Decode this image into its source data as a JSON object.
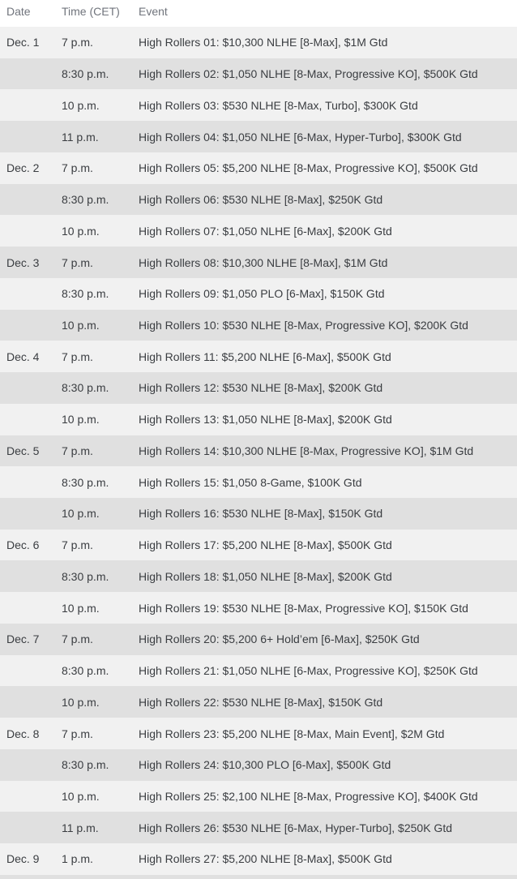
{
  "colors": {
    "background": "#ffffff",
    "row_light": "#f1f1f1",
    "row_dark": "#e0e0e0",
    "header_text": "#70747c",
    "body_text": "#3a3d41"
  },
  "table": {
    "columns": [
      "Date",
      "Time (CET)",
      "Event"
    ],
    "rows": [
      {
        "date": "Dec. 1",
        "time": "7 p.m.",
        "event": "High Rollers 01: $10,300 NLHE [8-Max], $1M Gtd"
      },
      {
        "date": "",
        "time": "8:30 p.m.",
        "event": "High Rollers 02: $1,050 NLHE [8-Max, Progressive KO], $500K Gtd"
      },
      {
        "date": "",
        "time": "10 p.m.",
        "event": "High Rollers 03: $530 NLHE [8-Max, Turbo], $300K Gtd"
      },
      {
        "date": "",
        "time": "11 p.m.",
        "event": "High Rollers 04: $1,050 NLHE [6-Max, Hyper-Turbo], $300K Gtd"
      },
      {
        "date": "Dec. 2",
        "time": "7 p.m.",
        "event": "High Rollers 05: $5,200 NLHE [8-Max, Progressive KO], $500K Gtd"
      },
      {
        "date": "",
        "time": "8:30 p.m.",
        "event": "High Rollers 06: $530 NLHE [8-Max], $250K Gtd"
      },
      {
        "date": "",
        "time": "10 p.m.",
        "event": "High Rollers 07: $1,050 NLHE [6-Max], $200K Gtd"
      },
      {
        "date": "Dec. 3",
        "time": "7 p.m.",
        "event": "High Rollers 08: $10,300 NLHE [8-Max], $1M Gtd"
      },
      {
        "date": "",
        "time": "8:30 p.m.",
        "event": "High Rollers 09: $1,050 PLO [6-Max], $150K Gtd"
      },
      {
        "date": "",
        "time": "10 p.m.",
        "event": "High Rollers 10: $530 NLHE [8-Max, Progressive KO], $200K Gtd"
      },
      {
        "date": "Dec. 4",
        "time": "7 p.m.",
        "event": "High Rollers 11: $5,200 NLHE [6-Max], $500K Gtd"
      },
      {
        "date": "",
        "time": "8:30 p.m.",
        "event": "High Rollers 12: $530 NLHE [8-Max], $200K Gtd"
      },
      {
        "date": "",
        "time": "10 p.m.",
        "event": "High Rollers 13: $1,050 NLHE [8-Max], $200K Gtd"
      },
      {
        "date": "Dec. 5",
        "time": "7 p.m.",
        "event": "High Rollers 14: $10,300 NLHE [8-Max, Progressive KO], $1M Gtd"
      },
      {
        "date": "",
        "time": "8:30 p.m.",
        "event": "High Rollers 15: $1,050 8-Game, $100K Gtd"
      },
      {
        "date": "",
        "time": "10 p.m.",
        "event": "High Rollers 16: $530 NLHE [8-Max], $150K Gtd"
      },
      {
        "date": "Dec. 6",
        "time": "7 p.m.",
        "event": "High Rollers 17: $5,200 NLHE [8-Max], $500K Gtd"
      },
      {
        "date": "",
        "time": "8:30 p.m.",
        "event": "High Rollers 18: $1,050 NLHE [8-Max], $200K Gtd"
      },
      {
        "date": "",
        "time": "10 p.m.",
        "event": "High Rollers 19: $530 NLHE [8-Max, Progressive KO], $150K Gtd"
      },
      {
        "date": "Dec. 7",
        "time": "7 p.m.",
        "event": "High Rollers 20: $5,200 6+ Hold’em [6-Max], $250K Gtd"
      },
      {
        "date": "",
        "time": "8:30 p.m.",
        "event": "High Rollers 21: $1,050 NLHE [6-Max, Progressive KO], $250K Gtd"
      },
      {
        "date": "",
        "time": "10 p.m.",
        "event": "High Rollers 22: $530 NLHE [8-Max], $150K Gtd"
      },
      {
        "date": "Dec. 8",
        "time": "7 p.m.",
        "event": "High Rollers 23: $5,200 NLHE [8-Max, Main Event], $2M Gtd"
      },
      {
        "date": "",
        "time": "8:30 p.m.",
        "event": "High Rollers 24: $10,300 PLO [6-Max], $500K Gtd"
      },
      {
        "date": "",
        "time": "10 p.m.",
        "event": "High Rollers 25: $2,100 NLHE [8-Max, Progressive KO], $400K Gtd"
      },
      {
        "date": "",
        "time": "11 p.m.",
        "event": "High Rollers 26: $530 NLHE [6-Max, Hyper-Turbo], $250K Gtd"
      },
      {
        "date": "Dec. 9",
        "time": "1 p.m.",
        "event": "High Rollers 27: $5,200 NLHE [8-Max], $500K Gtd"
      }
    ]
  }
}
